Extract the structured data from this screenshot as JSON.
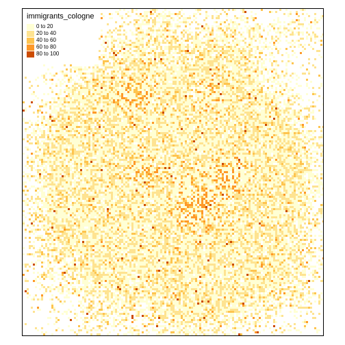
{
  "map": {
    "legend": {
      "title": "immigrants_cologne",
      "classes": [
        {
          "label": "0 to 20",
          "color": "#ffffd4"
        },
        {
          "label": "20 to 40",
          "color": "#fee391"
        },
        {
          "label": "40 to 60",
          "color": "#fec44f"
        },
        {
          "label": "60 to 80",
          "color": "#fe9929"
        },
        {
          "label": "80 to 100",
          "color": "#cc4c02"
        }
      ]
    },
    "background_color": "#ffffff",
    "frame_color": "#000000"
  }
}
